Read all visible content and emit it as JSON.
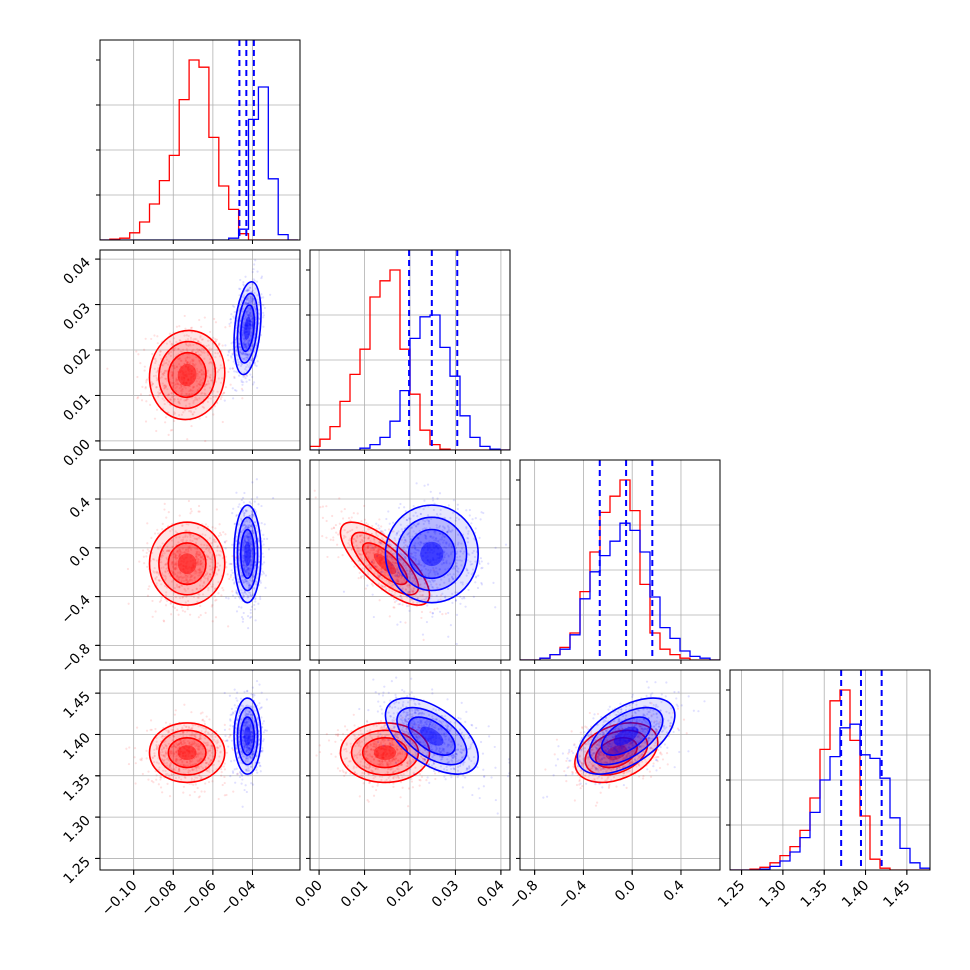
{
  "chart_data": {
    "type": "corner",
    "title": "",
    "parameters": [
      {
        "name": "",
        "range": [
          -0.117,
          -0.016
        ],
        "ticks": [
          -0.1,
          -0.08,
          -0.06,
          -0.04
        ],
        "tick_labels": [
          "−0.10",
          "−0.08",
          "−0.06",
          "−0.04"
        ]
      },
      {
        "name": "",
        "range": [
          -0.002,
          0.042
        ],
        "ticks": [
          0.0,
          0.01,
          0.02,
          0.03,
          0.04
        ],
        "tick_labels": [
          "0.00",
          "0.01",
          "0.02",
          "0.03",
          "0.04"
        ]
      },
      {
        "name": "",
        "range": [
          -0.92,
          0.72
        ],
        "ticks": [
          -0.8,
          -0.4,
          0.0,
          0.4
        ],
        "tick_labels": [
          "−0.8",
          "−0.4",
          "0.0",
          "0.4"
        ]
      },
      {
        "name": "",
        "range": [
          1.236,
          1.478
        ],
        "ticks": [
          1.25,
          1.3,
          1.35,
          1.4,
          1.45
        ],
        "tick_labels": [
          "1.25",
          "1.30",
          "1.35",
          "1.40",
          "1.45"
        ]
      }
    ],
    "grid": true,
    "series": [
      {
        "color": "#ff0000",
        "means": [
          -0.073,
          0.0145,
          -0.13,
          1.378
        ],
        "sigmas": [
          0.0095,
          0.0049,
          0.17,
          0.018
        ],
        "correlations": [
          [
            1,
            0.05,
            0.0,
            0.0
          ],
          [
            0.05,
            1,
            -0.75,
            0.0
          ],
          [
            0.0,
            -0.75,
            1,
            0.35
          ],
          [
            0.0,
            0.0,
            0.35,
            1
          ]
        ],
        "histograms": [
          {
            "edges": [
              -0.117,
              -0.112,
              -0.107,
              -0.102,
              -0.097,
              -0.092,
              -0.087,
              -0.082,
              -0.077,
              -0.072,
              -0.067,
              -0.062,
              -0.057,
              -0.052,
              -0.047,
              -0.042,
              -0.037,
              -0.032,
              -0.027,
              -0.022,
              -0.017
            ],
            "counts": [
              0,
              0.005,
              0.01,
              0.04,
              0.1,
              0.2,
              0.33,
              0.47,
              0.78,
              1.0,
              0.96,
              0.57,
              0.3,
              0.17,
              0.035,
              0.0,
              0,
              0,
              0,
              0
            ]
          },
          {
            "edges": [
              -0.002,
              0.0002,
              0.0024,
              0.0046,
              0.0068,
              0.009,
              0.0112,
              0.0134,
              0.0156,
              0.0178,
              0.02,
              0.0222,
              0.0244,
              0.0266,
              0.0288,
              0.031,
              0.0332,
              0.0354,
              0.0376,
              0.0398,
              0.042
            ],
            "counts": [
              0.02,
              0.06,
              0.13,
              0.27,
              0.42,
              0.56,
              0.85,
              0.94,
              1.0,
              0.56,
              0.31,
              0.11,
              0.03,
              0.005,
              0,
              0,
              0,
              0,
              0,
              0
            ]
          },
          {
            "edges": [
              -0.92,
              -0.838,
              -0.756,
              -0.674,
              -0.592,
              -0.51,
              -0.428,
              -0.346,
              -0.264,
              -0.182,
              -0.1,
              -0.018,
              0.064,
              0.146,
              0.228,
              0.31,
              0.392,
              0.474,
              0.556,
              0.638,
              0.72
            ],
            "counts": [
              0.0,
              0.0,
              0.01,
              0.03,
              0.07,
              0.15,
              0.38,
              0.6,
              0.82,
              0.91,
              1.0,
              0.83,
              0.42,
              0.15,
              0.06,
              0.03,
              0.01,
              0.0,
              0,
              0
            ]
          },
          {
            "edges": [
              1.236,
              1.2481,
              1.2602,
              1.2723,
              1.2844,
              1.2965,
              1.3086,
              1.3207,
              1.3328,
              1.3449,
              1.357,
              1.3691,
              1.3812,
              1.3933,
              1.4054,
              1.4175,
              1.4296,
              1.4417,
              1.4538,
              1.4659,
              1.478
            ],
            "counts": [
              0,
              0,
              0.005,
              0.015,
              0.04,
              0.08,
              0.13,
              0.22,
              0.4,
              0.67,
              0.94,
              1.0,
              0.72,
              0.3,
              0.06,
              0.01,
              0,
              0,
              0,
              0
            ]
          }
        ]
      },
      {
        "color": "#0000ff",
        "means": [
          -0.0425,
          0.0248,
          -0.05,
          1.398
        ],
        "sigmas": [
          0.0034,
          0.0051,
          0.2,
          0.023
        ],
        "correlations": [
          [
            1,
            0.3,
            0.0,
            0.0
          ],
          [
            0.3,
            1,
            0.0,
            -0.55
          ],
          [
            0.0,
            0.0,
            1,
            0.55
          ],
          [
            0.0,
            -0.55,
            0.55,
            1
          ]
        ],
        "quantiles": [
          [
            -0.0466,
            -0.0431,
            -0.0393
          ],
          [
            0.0198,
            0.0248,
            0.0304
          ],
          [
            -0.266,
            -0.05,
            0.165
          ],
          [
            1.3705,
            1.3945,
            1.4195
          ]
        ],
        "histograms": [
          {
            "edges": [
              -0.117,
              -0.112,
              -0.107,
              -0.102,
              -0.097,
              -0.092,
              -0.087,
              -0.082,
              -0.077,
              -0.072,
              -0.067,
              -0.062,
              -0.057,
              -0.052,
              -0.047,
              -0.042,
              -0.037,
              -0.032,
              -0.027,
              -0.022,
              -0.017
            ],
            "counts": [
              0,
              0,
              0,
              0,
              0,
              0,
              0,
              0,
              0,
              0,
              0,
              0,
              0,
              0.01,
              0.06,
              0.67,
              0.85,
              0.34,
              0.03,
              0.0
            ]
          },
          {
            "edges": [
              -0.002,
              0.0002,
              0.0024,
              0.0046,
              0.0068,
              0.009,
              0.0112,
              0.0134,
              0.0156,
              0.0178,
              0.02,
              0.0222,
              0.0244,
              0.0266,
              0.0288,
              0.031,
              0.0332,
              0.0354,
              0.0376,
              0.0398,
              0.042
            ],
            "counts": [
              0,
              0,
              0,
              0,
              0,
              0.01,
              0.03,
              0.07,
              0.16,
              0.33,
              0.62,
              0.74,
              0.75,
              0.57,
              0.41,
              0.19,
              0.07,
              0.02,
              0.005,
              0
            ]
          },
          {
            "edges": [
              -0.92,
              -0.838,
              -0.756,
              -0.674,
              -0.592,
              -0.51,
              -0.428,
              -0.346,
              -0.264,
              -0.182,
              -0.1,
              -0.018,
              0.064,
              0.146,
              0.228,
              0.31,
              0.392,
              0.474,
              0.556,
              0.638,
              0.72
            ],
            "counts": [
              0.0,
              0.0,
              0.01,
              0.03,
              0.06,
              0.14,
              0.34,
              0.49,
              0.58,
              0.66,
              0.76,
              0.72,
              0.6,
              0.35,
              0.18,
              0.12,
              0.05,
              0.02,
              0.01,
              0
            ]
          },
          {
            "edges": [
              1.236,
              1.2481,
              1.2602,
              1.2723,
              1.2844,
              1.2965,
              1.3086,
              1.3207,
              1.3328,
              1.3449,
              1.357,
              1.3691,
              1.3812,
              1.3933,
              1.4054,
              1.4175,
              1.4296,
              1.4417,
              1.4538,
              1.4659,
              1.478
            ],
            "counts": [
              0,
              0,
              0,
              0.005,
              0.02,
              0.05,
              0.1,
              0.18,
              0.32,
              0.5,
              0.63,
              0.79,
              0.81,
              0.64,
              0.62,
              0.51,
              0.29,
              0.12,
              0.04,
              0.01
            ]
          }
        ]
      }
    ]
  }
}
